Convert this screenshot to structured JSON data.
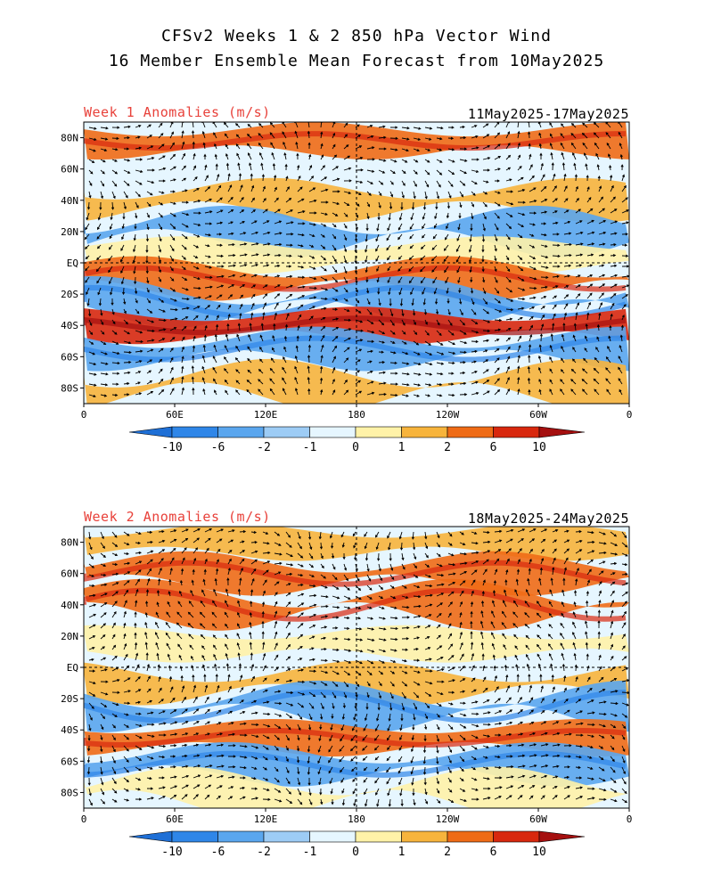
{
  "title_line1": "CFSv2 Weeks 1 & 2 850 hPa Vector Wind",
  "title_line2": "16 Member Ensemble Mean Forecast from 10May2025",
  "panels": [
    {
      "label": "Week 1 Anomalies (m/s)",
      "date_range": "11May2025-17May2025",
      "anomaly_bands": [
        {
          "lat": 78,
          "value": 5
        },
        {
          "lat": 40,
          "value": 2
        },
        {
          "lat": 20,
          "value": -2
        },
        {
          "lat": 5,
          "value": 1
        },
        {
          "lat": -10,
          "value": 4
        },
        {
          "lat": -25,
          "value": -4
        },
        {
          "lat": -40,
          "value": 7
        },
        {
          "lat": -55,
          "value": -4
        },
        {
          "lat": -78,
          "value": 2
        }
      ]
    },
    {
      "label": "Week 2 Anomalies (m/s)",
      "date_range": "18May2025-24May2025",
      "anomaly_bands": [
        {
          "lat": 80,
          "value": 2
        },
        {
          "lat": 60,
          "value": 3
        },
        {
          "lat": 40,
          "value": 3
        },
        {
          "lat": 15,
          "value": 1
        },
        {
          "lat": -10,
          "value": 2
        },
        {
          "lat": -25,
          "value": -3
        },
        {
          "lat": -45,
          "value": 6
        },
        {
          "lat": -62,
          "value": -3
        },
        {
          "lat": -80,
          "value": 1
        }
      ]
    }
  ],
  "lat_labels": [
    "80N",
    "60N",
    "40N",
    "20N",
    "EQ",
    "20S",
    "40S",
    "60S",
    "80S"
  ],
  "lon_labels": [
    "0",
    "60E",
    "120E",
    "180",
    "120W",
    "60W",
    "0"
  ],
  "colorbar": {
    "labels": [
      "-10",
      "-6",
      "-2",
      "-1",
      "0",
      "1",
      "2",
      "6",
      "10"
    ],
    "colors": [
      "#1e6fd6",
      "#2f86e8",
      "#5aa6ee",
      "#9dccf5",
      "#e6f6ff",
      "#fff2a8",
      "#f7b43c",
      "#ef6b16",
      "#d8280e",
      "#a50f0f"
    ]
  }
}
